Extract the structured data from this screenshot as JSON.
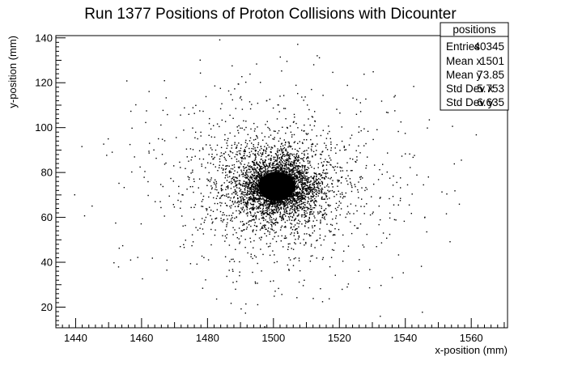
{
  "chart_data": {
    "type": "scatter",
    "title": "Run 1377 Positions of Proton Collisions with Dicounter",
    "xlabel": "x-position (mm)",
    "ylabel": "y-position (mm)",
    "xlim": [
      1434,
      1571
    ],
    "ylim": [
      10.8,
      141
    ],
    "x_ticks": [
      1440,
      1460,
      1480,
      1500,
      1520,
      1540,
      1560
    ],
    "y_ticks": [
      20,
      40,
      60,
      80,
      100,
      120,
      140
    ],
    "grid": false,
    "legend": "top-right",
    "marker_color": "#000000",
    "distribution": {
      "center_x": 1501,
      "center_y": 73.85,
      "core_radius_x": 5.5,
      "core_radius_y": 6.5
    },
    "stats_box": {
      "name": "positions",
      "rows": [
        {
          "label": "Entries",
          "value": "40345"
        },
        {
          "label": "Mean x",
          "value": "1501"
        },
        {
          "label": "Mean y",
          "value": "73.85"
        },
        {
          "label": "Std Dev x",
          "value": "5.753"
        },
        {
          "label": "Std Dev y",
          "value": "6.635"
        }
      ]
    }
  }
}
